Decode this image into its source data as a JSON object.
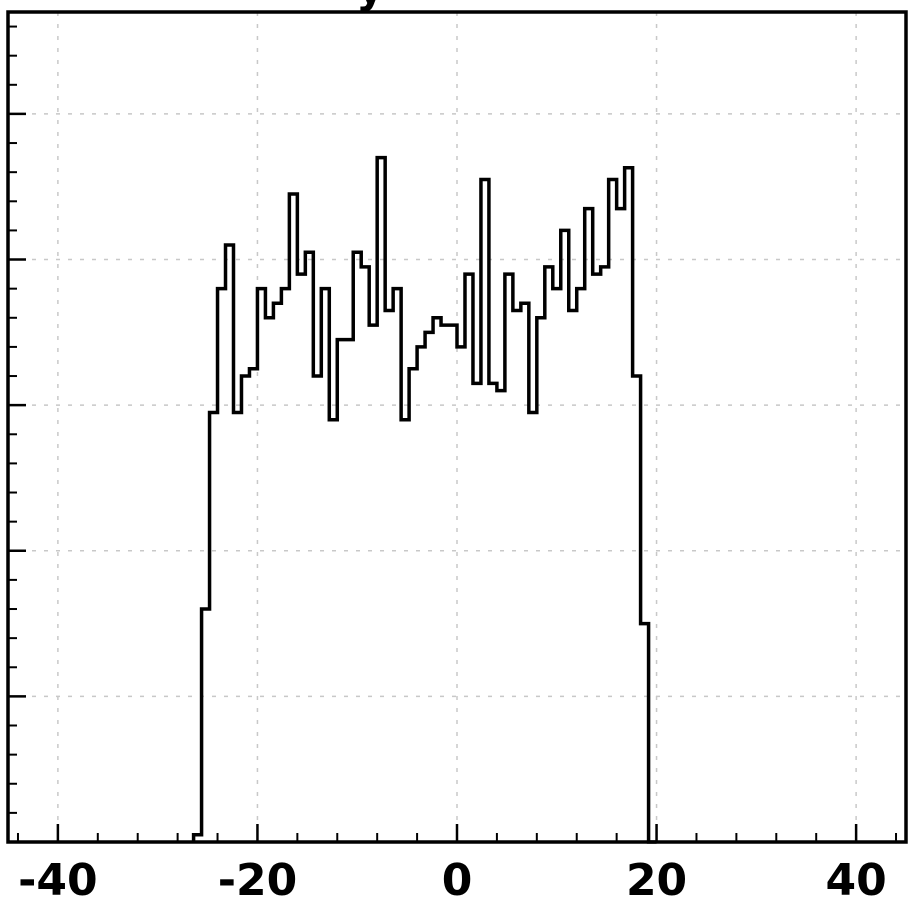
{
  "chart_data": {
    "type": "histogram",
    "title": "",
    "xlabel": "",
    "ylabel": "",
    "xlim": [
      -45,
      45
    ],
    "ylim": [
      0,
      570
    ],
    "grid": true,
    "x_tick_values": [
      -40,
      -20,
      0,
      20,
      40
    ],
    "x_tick_labels": [
      "-40",
      "-20",
      "0",
      "20",
      "40"
    ],
    "y_major_ticks": [
      100,
      200,
      300,
      400,
      500
    ],
    "bin_width": 0.8,
    "bin_start": -26.4,
    "values": [
      5,
      160,
      295,
      380,
      410,
      295,
      320,
      325,
      380,
      360,
      370,
      380,
      445,
      390,
      405,
      320,
      380,
      290,
      345,
      345,
      405,
      395,
      355,
      470,
      365,
      380,
      290,
      325,
      340,
      350,
      360,
      355,
      355,
      340,
      390,
      315,
      455,
      315,
      310,
      390,
      365,
      370,
      295,
      360,
      395,
      380,
      420,
      365,
      380,
      435,
      390,
      395,
      455,
      435,
      463,
      320,
      150,
      0
    ]
  }
}
